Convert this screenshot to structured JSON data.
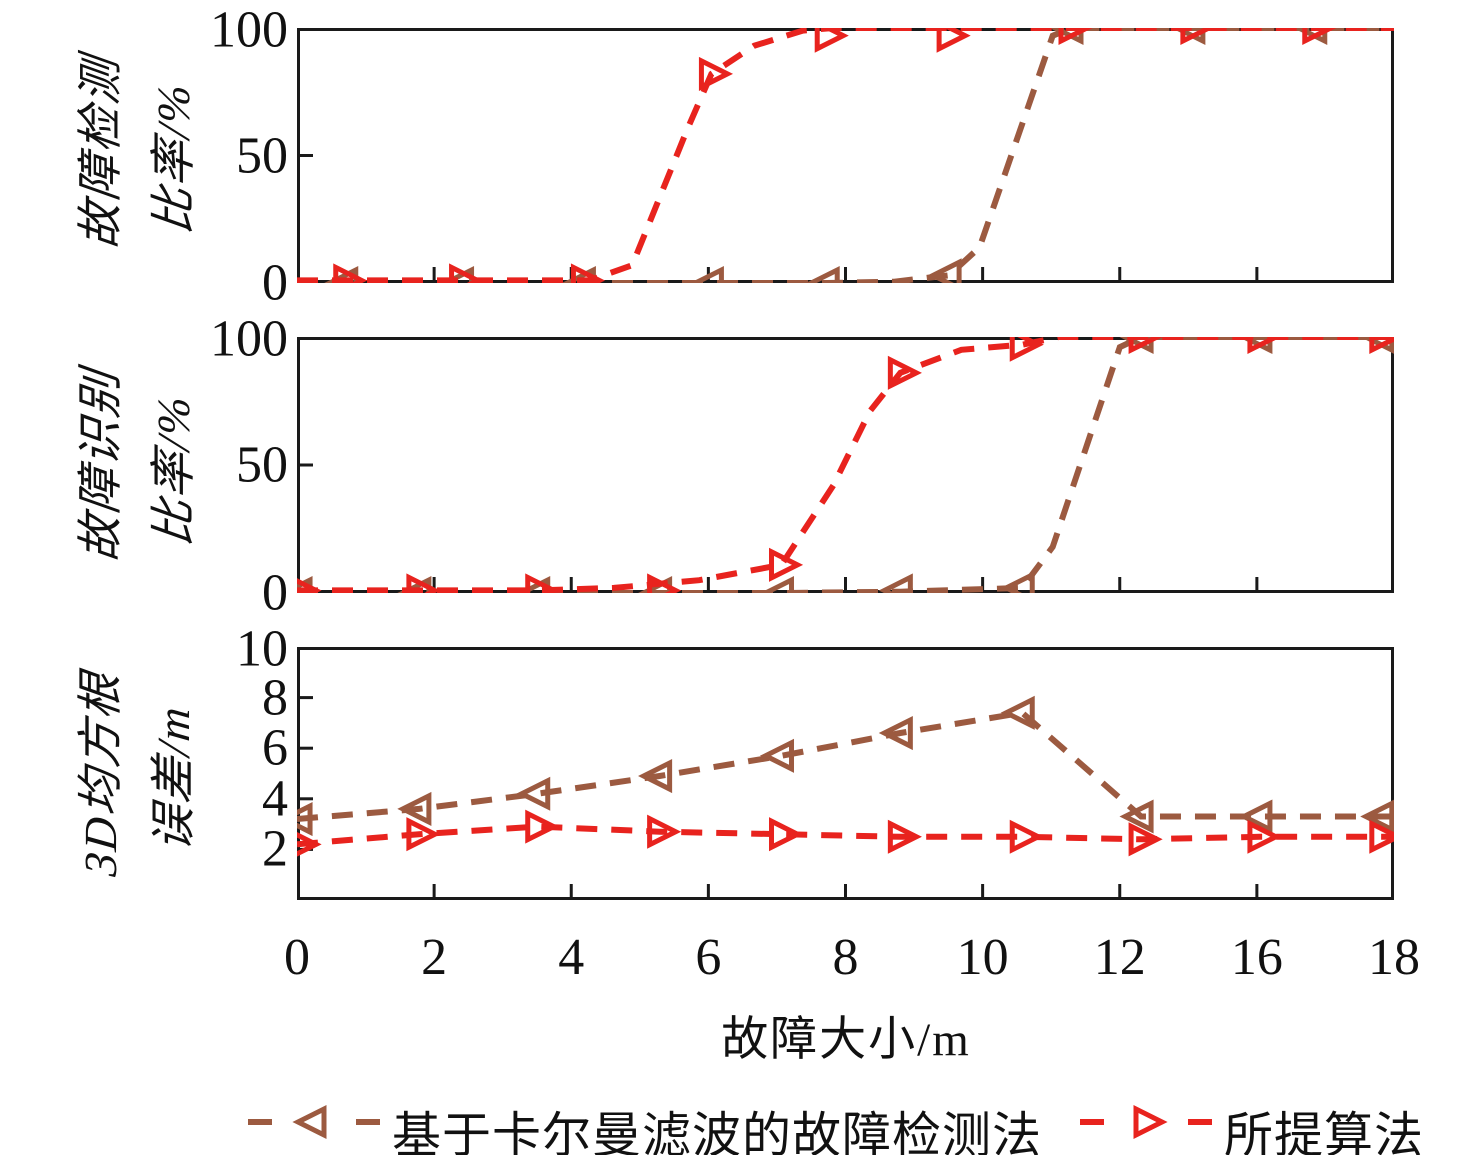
{
  "figure": {
    "background": "#ffffff"
  },
  "colors": {
    "kalman": "#9C5A40",
    "proposed": "#E8231E",
    "axis": "#1a1a1a",
    "text": "#111111"
  },
  "x_axis": {
    "title": "故障大小/m",
    "range": [
      0,
      18
    ],
    "tick_labels": [
      "0",
      "2",
      "4",
      "6",
      "8",
      "10",
      "12",
      "16",
      "18"
    ]
  },
  "legend": [
    {
      "label": "基于卡尔曼滤波的故障检测法",
      "color_key": "kalman",
      "marker": "left-triangle"
    },
    {
      "label": "所提算法",
      "color_key": "proposed",
      "marker": "right-triangle"
    }
  ],
  "chart_data": [
    {
      "type": "line",
      "name": "fault-detection-rate",
      "ylabel_lines": [
        "故障检测",
        "比率/%"
      ],
      "y_range": [
        0,
        100
      ],
      "y_ticks": [
        {
          "value": 0,
          "label": "0"
        },
        {
          "value": 50,
          "label": "50"
        },
        {
          "value": 100,
          "label": "100"
        }
      ],
      "series": [
        {
          "name": "基于卡尔曼滤波的故障检测法",
          "color_key": "kalman",
          "marker": "left-triangle",
          "x": [
            0.8,
            2.7,
            4.7,
            6.8,
            8.7,
            10.7,
            12.7,
            14.7,
            16.7
          ],
          "y": [
            0,
            0,
            0,
            0,
            0,
            3,
            100,
            100,
            100
          ],
          "path": [
            [
              0,
              0
            ],
            [
              4.8,
              0
            ],
            [
              8.7,
              0
            ],
            [
              9.8,
              0.5
            ],
            [
              10.7,
              3
            ],
            [
              11.2,
              14
            ],
            [
              12.4,
              97
            ],
            [
              12.7,
              100
            ],
            [
              18,
              100
            ]
          ]
        },
        {
          "name": "所提算法",
          "color_key": "proposed",
          "marker": "right-triangle",
          "x": [
            0.8,
            2.7,
            4.7,
            6.8,
            8.7,
            10.7,
            12.7,
            14.7,
            16.7
          ],
          "y": [
            1,
            1,
            1,
            82,
            97,
            97,
            100,
            100,
            100
          ],
          "path": [
            [
              0,
              1
            ],
            [
              2.7,
              1
            ],
            [
              4.8,
              1
            ],
            [
              5.5,
              7
            ],
            [
              6.4,
              60
            ],
            [
              6.8,
              82
            ],
            [
              7.5,
              93
            ],
            [
              8.3,
              99
            ],
            [
              8.8,
              100
            ],
            [
              18,
              100
            ]
          ]
        }
      ]
    },
    {
      "type": "line",
      "name": "fault-identification-rate",
      "ylabel_lines": [
        "故障识别",
        "比率/%"
      ],
      "y_range": [
        0,
        100
      ],
      "y_ticks": [
        {
          "value": 0,
          "label": "0"
        },
        {
          "value": 50,
          "label": "50"
        },
        {
          "value": 100,
          "label": "100"
        }
      ],
      "series": [
        {
          "name": "基于卡尔曼滤波的故障检测法",
          "color_key": "kalman",
          "marker": "left-triangle",
          "x": [
            0.05,
            2.0,
            3.95,
            5.95,
            7.95,
            9.9,
            11.9,
            13.85,
            15.8,
            17.8
          ],
          "y": [
            0,
            0,
            0,
            0,
            0,
            1,
            2,
            100,
            100,
            100
          ],
          "path": [
            [
              0,
              0
            ],
            [
              5.95,
              0
            ],
            [
              7.95,
              0
            ],
            [
              9.9,
              0.5
            ],
            [
              11.9,
              2
            ],
            [
              12.4,
              18
            ],
            [
              13.5,
              96
            ],
            [
              13.85,
              100
            ],
            [
              18,
              100
            ]
          ]
        },
        {
          "name": "所提算法",
          "color_key": "proposed",
          "marker": "right-triangle",
          "x": [
            0.05,
            2.0,
            3.95,
            5.95,
            7.95,
            9.9,
            11.9,
            13.85,
            15.8,
            17.8
          ],
          "y": [
            1,
            1,
            1,
            1,
            11,
            86,
            97,
            100,
            100,
            100
          ],
          "path": [
            [
              0,
              1
            ],
            [
              3.95,
              1
            ],
            [
              5.2,
              2
            ],
            [
              6.6,
              5
            ],
            [
              7.95,
              11
            ],
            [
              8.8,
              42
            ],
            [
              9.4,
              71
            ],
            [
              9.9,
              86
            ],
            [
              10.9,
              95
            ],
            [
              11.9,
              97
            ],
            [
              12.5,
              100
            ],
            [
              18,
              100
            ]
          ]
        }
      ]
    },
    {
      "type": "line",
      "name": "3d-rmse",
      "ylabel_lines": [
        "3D均方根",
        "误差/m"
      ],
      "y_range": [
        0,
        10
      ],
      "y_ticks": [
        {
          "value": 2,
          "label": "2"
        },
        {
          "value": 4,
          "label": "4"
        },
        {
          "value": 6,
          "label": "6"
        },
        {
          "value": 8,
          "label": "8"
        },
        {
          "value": 10,
          "label": "10"
        }
      ],
      "series": [
        {
          "name": "基于卡尔曼滤波的故障检测法",
          "color_key": "kalman",
          "marker": "left-triangle",
          "x": [
            0.05,
            2.0,
            3.95,
            5.95,
            7.95,
            9.9,
            11.9,
            13.85,
            15.8,
            17.8
          ],
          "y": [
            3.2,
            3.6,
            4.2,
            4.9,
            5.7,
            6.6,
            7.4,
            3.3,
            3.3,
            3.3
          ],
          "path": [
            [
              0,
              3.2
            ],
            [
              2,
              3.6
            ],
            [
              3.95,
              4.2
            ],
            [
              5.95,
              4.9
            ],
            [
              7.95,
              5.7
            ],
            [
              9.9,
              6.6
            ],
            [
              11.9,
              7.4
            ],
            [
              13.85,
              3.3
            ],
            [
              15.8,
              3.3
            ],
            [
              18,
              3.3
            ]
          ]
        },
        {
          "name": "所提算法",
          "color_key": "proposed",
          "marker": "right-triangle",
          "x": [
            0.05,
            2.0,
            3.95,
            5.95,
            7.95,
            9.9,
            11.9,
            13.85,
            15.8,
            17.8
          ],
          "y": [
            2.2,
            2.6,
            2.9,
            2.7,
            2.6,
            2.5,
            2.5,
            2.4,
            2.5,
            2.5
          ],
          "path": [
            [
              0,
              2.2
            ],
            [
              2,
              2.6
            ],
            [
              3.95,
              2.9
            ],
            [
              5.95,
              2.7
            ],
            [
              7.95,
              2.6
            ],
            [
              9.9,
              2.5
            ],
            [
              11.9,
              2.5
            ],
            [
              13.85,
              2.4
            ],
            [
              15.8,
              2.5
            ],
            [
              18,
              2.5
            ]
          ]
        }
      ]
    }
  ]
}
